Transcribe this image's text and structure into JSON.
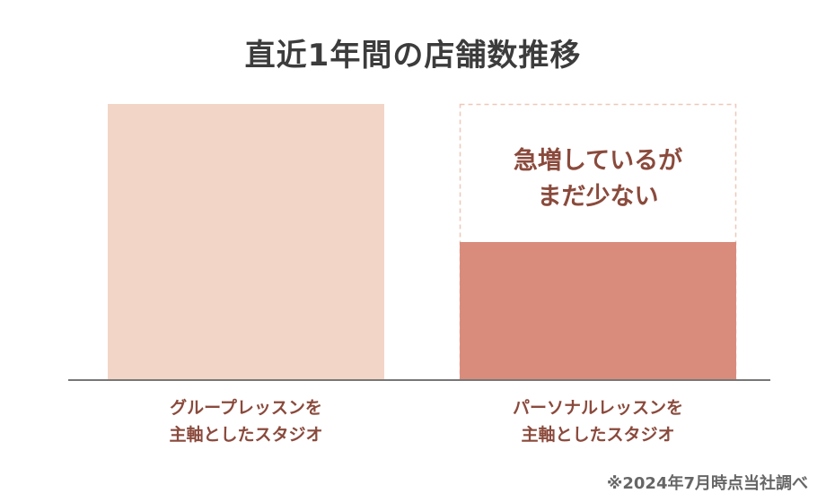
{
  "chart_data": {
    "type": "bar",
    "title": "直近1年間の店舗数推移",
    "categories": [
      [
        "グループレッスンを",
        "主軸としたスタジオ"
      ],
      [
        "パーソナルレッスンを",
        "主軸としたスタジオ"
      ]
    ],
    "series": [
      {
        "values": [
          1.0,
          0.5
        ]
      }
    ],
    "ylim": [
      0,
      1.0
    ],
    "grid": false,
    "annotations": [
      {
        "lines": [
          "急増しているが",
          "まだ少ない"
        ],
        "category_index": 1
      }
    ],
    "footnote": "※2024年7月時点当社調べ"
  },
  "colors": {
    "bar_group": "#f2d5c6",
    "bar_personal": "#d98c7c",
    "dashed_outline": "#eec8b8",
    "axis": "#777777",
    "label_text": "#8a4a3c",
    "title_text": "#3c3c3c"
  }
}
